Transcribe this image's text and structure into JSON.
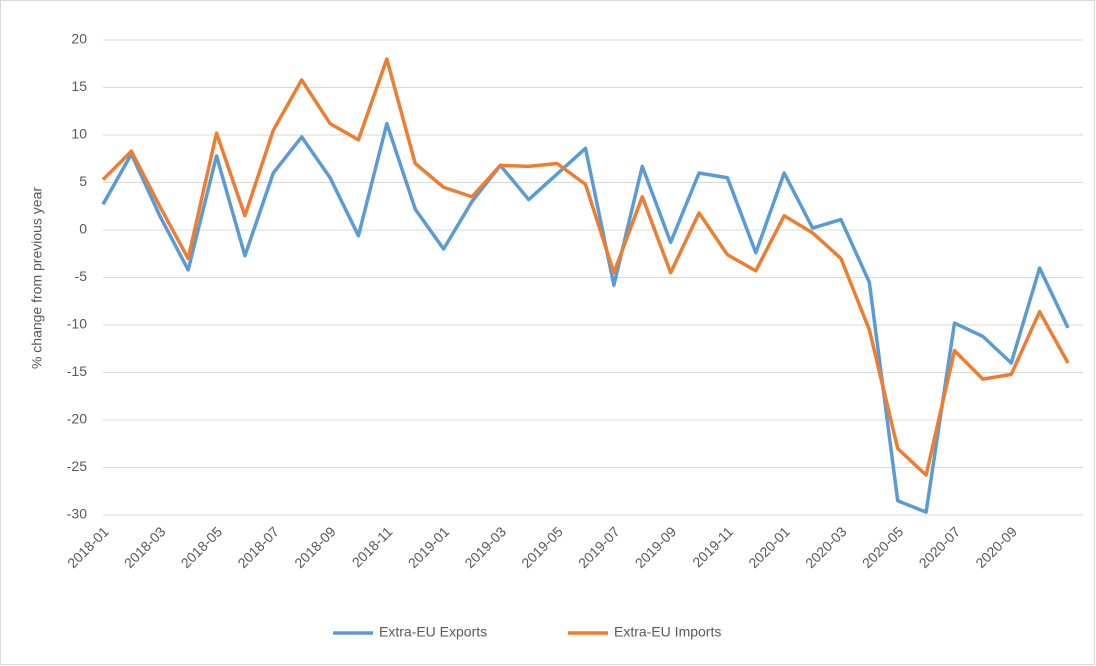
{
  "chart_data": {
    "type": "line",
    "y_label": "% change from previous year",
    "categories": [
      "2018-01",
      null,
      "2018-03",
      null,
      "2018-05",
      null,
      "2018-07",
      null,
      "2018-09",
      null,
      "2018-11",
      null,
      "2019-01",
      null,
      "2019-03",
      null,
      "2019-05",
      null,
      "2019-07",
      null,
      "2019-09",
      null,
      "2019-11",
      null,
      "2020-01",
      null,
      "2020-03",
      null,
      "2020-05",
      null,
      "2020-07",
      null,
      "2020-09",
      null,
      null
    ],
    "series": [
      {
        "name": "Extra-EU Exports",
        "color": "#5b9bd5",
        "values": [
          2.7,
          8.0,
          1.5,
          -4.2,
          7.8,
          -2.7,
          6.0,
          9.8,
          5.5,
          -0.6,
          11.2,
          2.2,
          -2.0,
          3.0,
          6.8,
          3.2,
          5.9,
          8.6,
          -5.8,
          6.7,
          -1.3,
          6.0,
          5.5,
          -2.4,
          6.0,
          0.2,
          1.1,
          -5.5,
          -28.5,
          -29.7,
          -9.8,
          -11.2,
          -14.0,
          -4.0,
          -10.3
        ]
      },
      {
        "name": "Extra-EU Imports",
        "color": "#ed7d31",
        "values": [
          5.3,
          8.3,
          2.5,
          -3.0,
          10.2,
          1.5,
          10.5,
          15.8,
          11.2,
          9.5,
          18.0,
          7.0,
          4.5,
          3.5,
          6.8,
          6.7,
          7.0,
          4.8,
          -4.5,
          3.5,
          -4.5,
          1.8,
          -2.6,
          -4.3,
          1.5,
          -0.3,
          -3.0,
          -10.5,
          -23.0,
          -25.8,
          -12.7,
          -15.7,
          -15.2,
          -8.6,
          -14.0
        ]
      }
    ],
    "ylim": [
      -30,
      20
    ],
    "yticks": [
      -30,
      -25,
      -20,
      -15,
      -10,
      -5,
      0,
      5,
      10,
      15,
      20
    ],
    "grid": true,
    "legend": "bottom"
  }
}
